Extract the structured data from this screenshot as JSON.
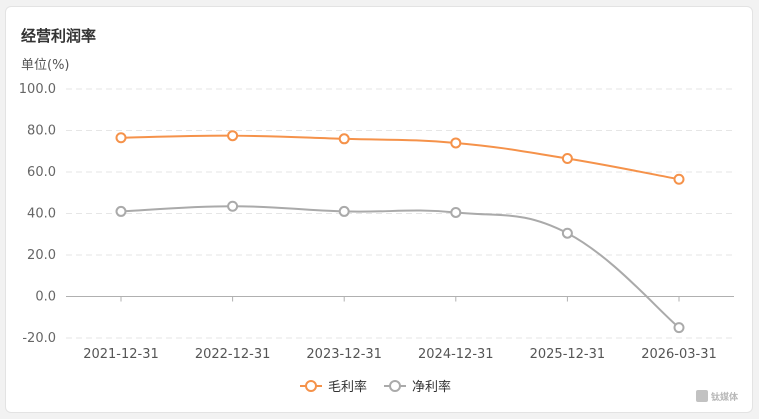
{
  "header": {
    "title": "经营利润率",
    "unit_label": "单位(%)"
  },
  "watermark": {
    "text": "钛媒体"
  },
  "chart_data": {
    "type": "line",
    "title": "经营利润率",
    "ylabel": "单位(%)",
    "xlabel": "",
    "categories": [
      "2021-12-31",
      "2022-12-31",
      "2023-12-31",
      "2024-12-31",
      "2025-12-31",
      "2026-03-31"
    ],
    "ylim": [
      -20,
      100
    ],
    "yticks": [
      -20,
      0,
      20,
      40,
      60,
      80,
      100
    ],
    "ytick_labels": [
      "-20.0",
      "0.0",
      "20.0",
      "40.0",
      "60.0",
      "80.0",
      "100.0"
    ],
    "grid": true,
    "legend_position": "bottom-center",
    "series": [
      {
        "name": "毛利率",
        "color": "#f5924a",
        "values": [
          76.5,
          77.5,
          76.0,
          74.0,
          66.5,
          56.5
        ]
      },
      {
        "name": "净利率",
        "color": "#aaaaaa",
        "values": [
          41.0,
          43.5,
          41.0,
          40.5,
          30.5,
          -15.0
        ]
      }
    ]
  }
}
